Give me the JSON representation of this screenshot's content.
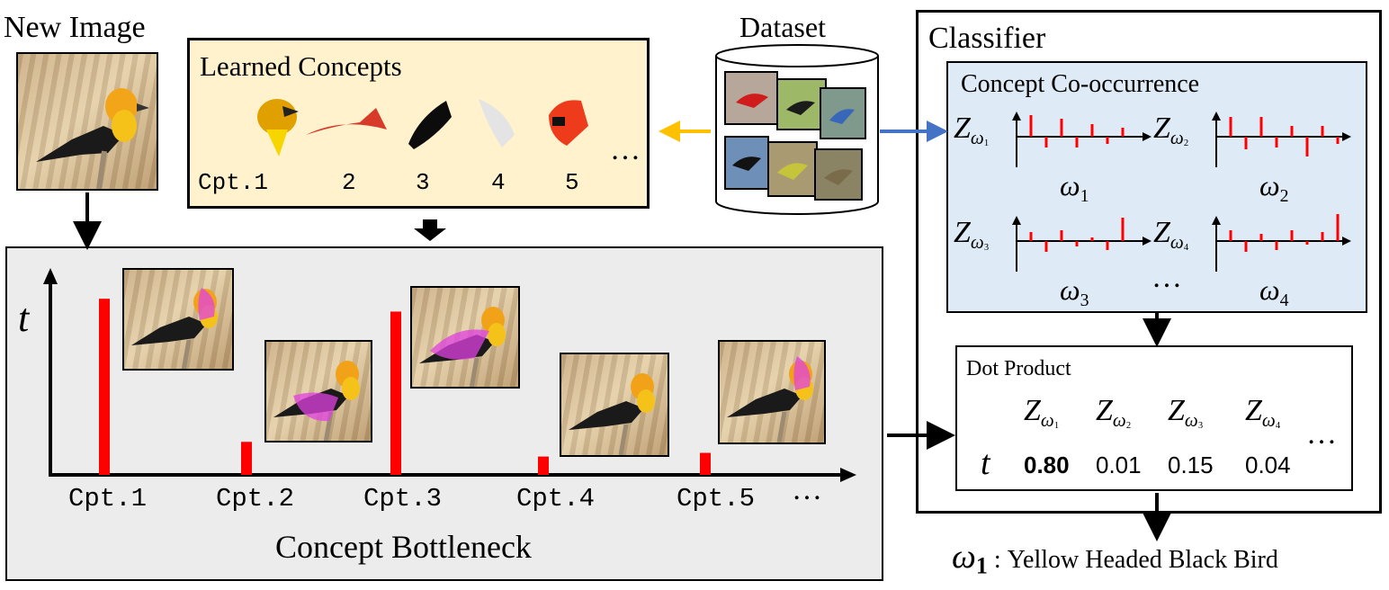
{
  "new_image": {
    "title": "New Image"
  },
  "learned_concepts": {
    "title": "Learned Concepts",
    "labels": [
      "Cpt.1",
      "2",
      "3",
      "4",
      "5"
    ],
    "ellipsis": "…"
  },
  "dataset": {
    "title": "Dataset"
  },
  "classifier": {
    "title": "Classifier",
    "cooccurrence": {
      "title": "Concept Co-occurrence",
      "ellipsis": "…",
      "plots": [
        {
          "z_base": "Z",
          "sub": "ω",
          "idx": "1",
          "axis": "ω",
          "axis_idx": "1"
        },
        {
          "z_base": "Z",
          "sub": "ω",
          "idx": "2",
          "axis": "ω",
          "axis_idx": "2"
        },
        {
          "z_base": "Z",
          "sub": "ω",
          "idx": "3",
          "axis": "ω",
          "axis_idx": "3"
        },
        {
          "z_base": "Z",
          "sub": "ω",
          "idx": "4",
          "axis": "ω",
          "axis_idx": "4"
        }
      ]
    },
    "dot_product": {
      "title": "Dot Product",
      "row_label": "t",
      "columns": [
        {
          "z": "Z",
          "sub": "ω",
          "idx": "1",
          "value": "0.80"
        },
        {
          "z": "Z",
          "sub": "ω",
          "idx": "2",
          "value": "0.01"
        },
        {
          "z": "Z",
          "sub": "ω",
          "idx": "3",
          "value": "0.15"
        },
        {
          "z": "Z",
          "sub": "ω",
          "idx": "4",
          "value": "0.04"
        }
      ],
      "ellipsis": "…"
    }
  },
  "bottleneck": {
    "title": "Concept Bottleneck",
    "y_label": "t",
    "ellipsis": "…",
    "concepts": [
      {
        "label": "Cpt.1",
        "value": 0.96
      },
      {
        "label": "Cpt.2",
        "value": 0.18
      },
      {
        "label": "Cpt.3",
        "value": 0.89
      },
      {
        "label": "Cpt.4",
        "value": 0.1
      },
      {
        "label": "Cpt.5",
        "value": 0.12
      }
    ]
  },
  "output": {
    "omega": "ω",
    "idx": "1",
    "label": ": Yellow Headed Black Bird"
  },
  "colors": {
    "bar": "#ff0000",
    "learned_bg": "#fff2cc",
    "cooc_bg": "#deebf7",
    "bottleneck_bg": "#ececec",
    "arrow_yellow": "#ffc000",
    "arrow_blue": "#4472c4"
  }
}
